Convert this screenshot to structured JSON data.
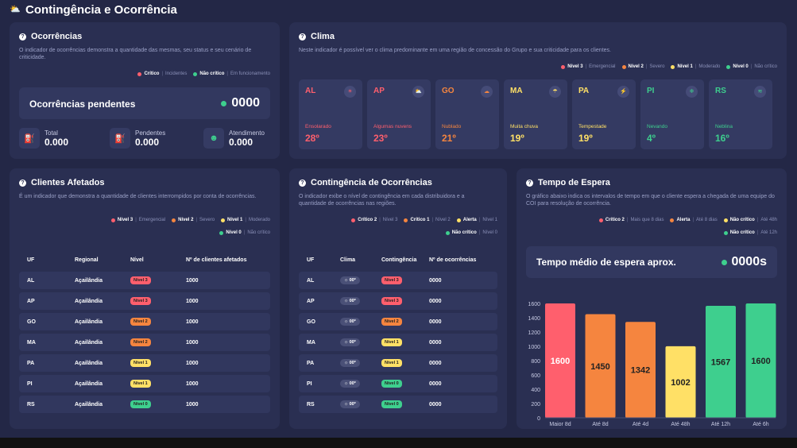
{
  "page_title": "Contingência e Ocorrência",
  "colors": {
    "red": "#ff5f6d",
    "orange": "#f5853f",
    "yellow": "#ffe066",
    "green": "#3ecf8e"
  },
  "ocorrencias": {
    "title": "Ocorrências",
    "desc": "O indicador de ocorrências demonstra a quantidade das mesmas, seu status e seu cenário de criticidade.",
    "legend": [
      {
        "name": "Crítico",
        "note": "Incidentes",
        "color": "#ff5f6d"
      },
      {
        "name": "Não crítico",
        "note": "Em funcionamento",
        "color": "#3ecf8e"
      }
    ],
    "pending_label": "Ocorrências pendentes",
    "pending_value": "0000",
    "stats": [
      {
        "label": "Total",
        "value": "0.000",
        "icon": "barrier-icon"
      },
      {
        "label": "Pendentes",
        "value": "0.000",
        "icon": "barrier-red-icon"
      },
      {
        "label": "Atendimento",
        "value": "0.000",
        "icon": "agent-icon"
      }
    ]
  },
  "clima": {
    "title": "Clima",
    "desc": "Neste indicador é possível ver o clima predominante em uma região de concessão do Grupo e sua criticidade para os clientes.",
    "legend": [
      {
        "name": "Nível 3",
        "note": "Emergencial",
        "color": "#ff5f6d"
      },
      {
        "name": "Nível 2",
        "note": "Severo",
        "color": "#f5853f"
      },
      {
        "name": "Nível 1",
        "note": "Moderado",
        "color": "#ffe066"
      },
      {
        "name": "Nível 0",
        "note": "Não crítico",
        "color": "#3ecf8e"
      }
    ],
    "cards": [
      {
        "uf": "AL",
        "cond": "Ensolarado",
        "temp": "28º",
        "color": "#ff5f6d",
        "icon": "☀"
      },
      {
        "uf": "AP",
        "cond": "Algumas nuvens",
        "temp": "23º",
        "color": "#ff5f6d",
        "icon": "⛅"
      },
      {
        "uf": "GO",
        "cond": "Nublado",
        "temp": "21º",
        "color": "#f5853f",
        "icon": "☁"
      },
      {
        "uf": "MA",
        "cond": "Muita chuva",
        "temp": "19º",
        "color": "#ffe066",
        "icon": "☂"
      },
      {
        "uf": "PA",
        "cond": "Tempestade",
        "temp": "19º",
        "color": "#ffe066",
        "icon": "⚡"
      },
      {
        "uf": "PI",
        "cond": "Nevando",
        "temp": "4º",
        "color": "#3ecf8e",
        "icon": "❄"
      },
      {
        "uf": "RS",
        "cond": "Neblina",
        "temp": "16º",
        "color": "#3ecf8e",
        "icon": "≋"
      }
    ]
  },
  "clientes": {
    "title": "Clientes Afetados",
    "desc": "É um indicador que demonstra a quantidade de clientes interrompidos por conta de ocorrências.",
    "legend": [
      {
        "name": "Nível 3",
        "note": "Emergencial",
        "color": "#ff5f6d"
      },
      {
        "name": "Nível 2",
        "note": "Severo",
        "color": "#f5853f"
      },
      {
        "name": "Nível 1",
        "note": "Moderado",
        "color": "#ffe066"
      },
      {
        "name": "Nível 0",
        "note": "Não crítico",
        "color": "#3ecf8e"
      }
    ],
    "headers": [
      "UF",
      "Regional",
      "Nível",
      "Nº de clientes afetados"
    ],
    "rows": [
      {
        "uf": "AL",
        "regional": "Açailândia",
        "nivel": "Nível 3",
        "color": "#ff5f6d",
        "qtd": "1000"
      },
      {
        "uf": "AP",
        "regional": "Açailândia",
        "nivel": "Nível 3",
        "color": "#ff5f6d",
        "qtd": "1000"
      },
      {
        "uf": "GO",
        "regional": "Açailândia",
        "nivel": "Nível 2",
        "color": "#f5853f",
        "qtd": "1000"
      },
      {
        "uf": "MA",
        "regional": "Açailândia",
        "nivel": "Nível 2",
        "color": "#f5853f",
        "qtd": "1000"
      },
      {
        "uf": "PA",
        "regional": "Açailândia",
        "nivel": "Nível 1",
        "color": "#ffe066",
        "qtd": "1000"
      },
      {
        "uf": "PI",
        "regional": "Açailândia",
        "nivel": "Nível 1",
        "color": "#ffe066",
        "qtd": "1000"
      },
      {
        "uf": "RS",
        "regional": "Açailândia",
        "nivel": "Nível 0",
        "color": "#3ecf8e",
        "qtd": "1000"
      }
    ]
  },
  "contingencia": {
    "title": "Contingência de Ocorrências",
    "desc": "O indicador exibe o nível de contingência em cada distribuidora e a quantidade de ocorrências nas regiões.",
    "legend": [
      {
        "name": "Crítico 2",
        "note": "Nível 3",
        "color": "#ff5f6d"
      },
      {
        "name": "Crítico 1",
        "note": "Nível 2",
        "color": "#f5853f"
      },
      {
        "name": "Alerta",
        "note": "Nível 1",
        "color": "#ffe066"
      },
      {
        "name": "Não crítico",
        "note": "Nível 0",
        "color": "#3ecf8e"
      }
    ],
    "headers": [
      "UF",
      "Clima",
      "Contingência",
      "Nº de ocorrências"
    ],
    "rows": [
      {
        "uf": "AL",
        "clima": "☼ 00º",
        "nivel": "Nível 3",
        "color": "#ff5f6d",
        "qtd": "0000"
      },
      {
        "uf": "AP",
        "clima": "☼ 00º",
        "nivel": "Nível 3",
        "color": "#ff5f6d",
        "qtd": "0000"
      },
      {
        "uf": "GO",
        "clima": "☼ 00º",
        "nivel": "Nível 2",
        "color": "#f5853f",
        "qtd": "0000"
      },
      {
        "uf": "MA",
        "clima": "☼ 00º",
        "nivel": "Nível 1",
        "color": "#ffe066",
        "qtd": "0000"
      },
      {
        "uf": "PA",
        "clima": "☼ 00º",
        "nivel": "Nível 1",
        "color": "#ffe066",
        "qtd": "0000"
      },
      {
        "uf": "PI",
        "clima": "☼ 00º",
        "nivel": "Nível 0",
        "color": "#3ecf8e",
        "qtd": "0000"
      },
      {
        "uf": "RS",
        "clima": "☼ 00º",
        "nivel": "Nível 0",
        "color": "#3ecf8e",
        "qtd": "0000"
      }
    ]
  },
  "espera": {
    "title": "Tempo de Espera",
    "desc": "O gráfico abaixo indica os intervalos de tempo em que o cliente espera a chegada de uma equipe do COI para resolução de ocorrência.",
    "legend": [
      {
        "name": "Crítico 2",
        "note": "Mais que 8 dias",
        "color": "#ff5f6d"
      },
      {
        "name": "Alerta",
        "note": "Até 8 dias",
        "color": "#f5853f"
      },
      {
        "name": "Não crítico",
        "note": "Até 48h",
        "color": "#ffe066"
      },
      {
        "name": "Não crítico",
        "note": "Até 12h",
        "color": "#3ecf8e"
      }
    ],
    "avg_label": "Tempo médio de espera aprox.",
    "avg_value": "0000s"
  },
  "chart_data": {
    "type": "bar",
    "categories": [
      "Maior 8d",
      "Até 8d",
      "Até 4d",
      "Até 48h",
      "Até 12h",
      "Até 6h"
    ],
    "values": [
      1600,
      1450,
      1342,
      1002,
      1567,
      1600
    ],
    "colors": [
      "#ff5f6d",
      "#f5853f",
      "#f5853f",
      "#ffe066",
      "#3ecf8e",
      "#3ecf8e"
    ],
    "yticks": [
      0,
      200,
      400,
      600,
      800,
      1000,
      1200,
      1400,
      1600
    ],
    "ylim": [
      0,
      1600
    ],
    "grid": false
  }
}
